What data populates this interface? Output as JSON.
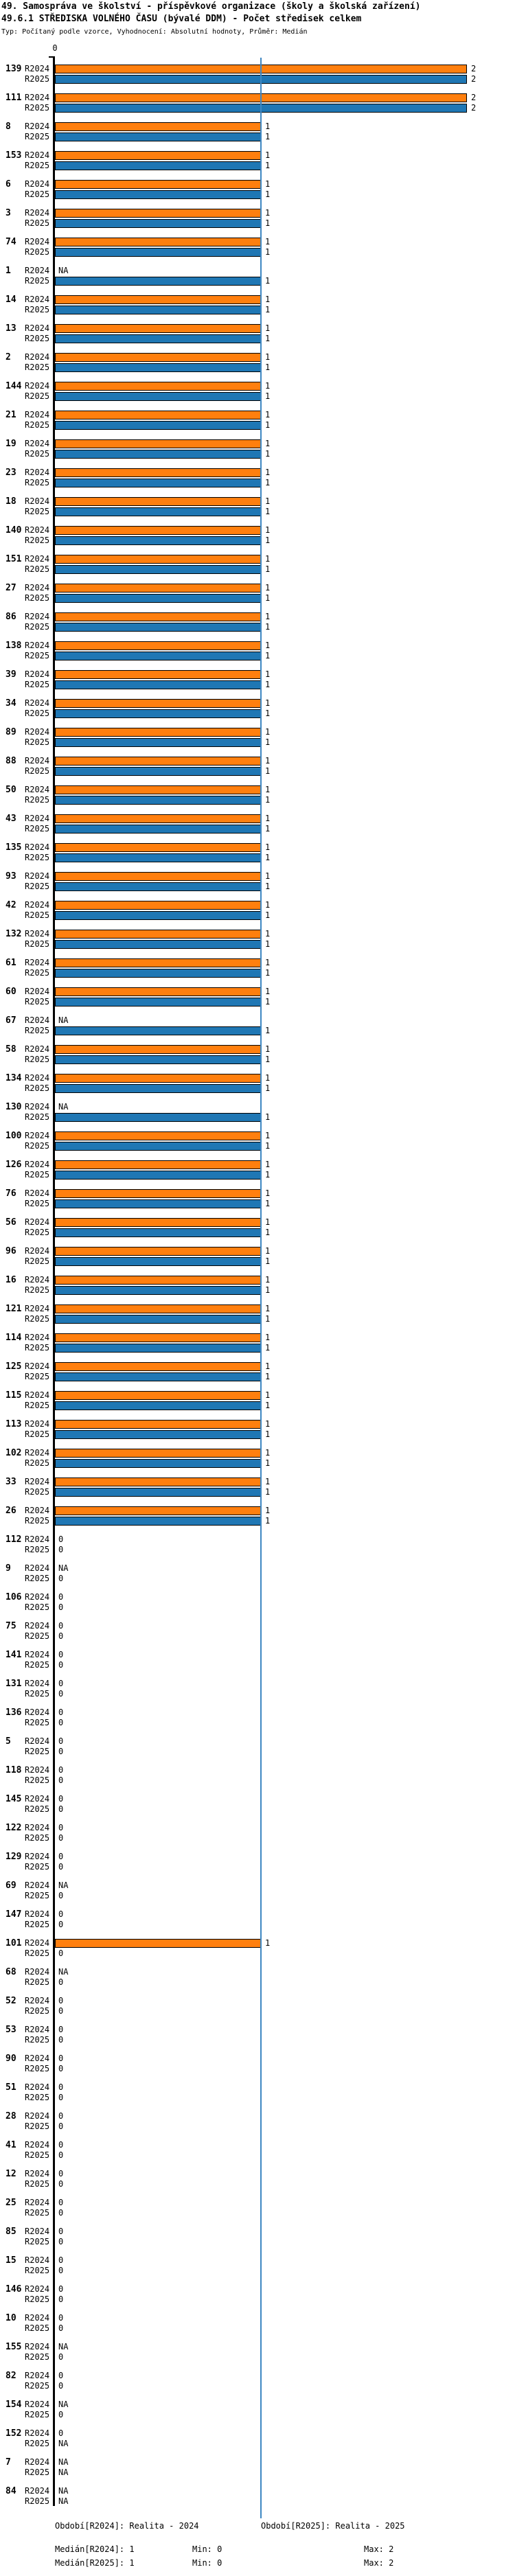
{
  "header": {
    "title_line1": "49. Samospráva ve školství - příspěvkové organizace (školy a školská zařízení)",
    "title_line2": "49.6.1 STŘEDISKA VOLNÉHO ČASU (bývalé DDM) - Počet středisek celkem",
    "subtitle": "Typ: Počítaný podle vzorce, Vyhodnocení: Absolutní hodnoty, Průměr: Medián"
  },
  "colors": {
    "r2024_bar": "#FF7F0E",
    "r2025_bar": "#1F77B4",
    "median_line": "#3E87C2",
    "axis": "#000000"
  },
  "footer": {
    "period_r2024": "Období[R2024]: Realita - 2024",
    "period_r2025": "Období[R2025]: Realita - 2025",
    "median_r2024": "Medián[R2024]: 1",
    "min_r2024": "Min: 0",
    "max_r2024": "Max: 2",
    "median_r2025": "Medián[R2025]: 1",
    "min_r2025": "Min: 0",
    "max_r2025": "Max: 2"
  },
  "chart_data": {
    "type": "bar",
    "orientation": "horizontal",
    "title": "49.6.1 STŘEDISKA VOLNÉHO ČASU (bývalé DDM) - Počet středisek celkem",
    "series": [
      "R2024",
      "R2025"
    ],
    "x_axis": {
      "min": 0,
      "max": 2,
      "zero_label": "0",
      "grid": false
    },
    "median": {
      "R2024": 1,
      "R2025": 1
    },
    "min": {
      "R2024": 0,
      "R2025": 0
    },
    "max": {
      "R2024": 2,
      "R2025": 2
    },
    "na_label": "NA",
    "groups": [
      {
        "label": "139",
        "R2024": "2",
        "R2025": "2"
      },
      {
        "label": "111",
        "R2024": "2",
        "R2025": "2"
      },
      {
        "label": "8",
        "R2024": "1",
        "R2025": "1"
      },
      {
        "label": "153",
        "R2024": "1",
        "R2025": "1"
      },
      {
        "label": "6",
        "R2024": "1",
        "R2025": "1"
      },
      {
        "label": "3",
        "R2024": "1",
        "R2025": "1"
      },
      {
        "label": "74",
        "R2024": "1",
        "R2025": "1"
      },
      {
        "label": "1",
        "R2024": "NA",
        "R2025": "1"
      },
      {
        "label": "14",
        "R2024": "1",
        "R2025": "1"
      },
      {
        "label": "13",
        "R2024": "1",
        "R2025": "1"
      },
      {
        "label": "2",
        "R2024": "1",
        "R2025": "1"
      },
      {
        "label": "144",
        "R2024": "1",
        "R2025": "1"
      },
      {
        "label": "21",
        "R2024": "1",
        "R2025": "1"
      },
      {
        "label": "19",
        "R2024": "1",
        "R2025": "1"
      },
      {
        "label": "23",
        "R2024": "1",
        "R2025": "1"
      },
      {
        "label": "18",
        "R2024": "1",
        "R2025": "1"
      },
      {
        "label": "140",
        "R2024": "1",
        "R2025": "1"
      },
      {
        "label": "151",
        "R2024": "1",
        "R2025": "1"
      },
      {
        "label": "27",
        "R2024": "1",
        "R2025": "1"
      },
      {
        "label": "86",
        "R2024": "1",
        "R2025": "1"
      },
      {
        "label": "138",
        "R2024": "1",
        "R2025": "1"
      },
      {
        "label": "39",
        "R2024": "1",
        "R2025": "1"
      },
      {
        "label": "34",
        "R2024": "1",
        "R2025": "1"
      },
      {
        "label": "89",
        "R2024": "1",
        "R2025": "1"
      },
      {
        "label": "88",
        "R2024": "1",
        "R2025": "1"
      },
      {
        "label": "50",
        "R2024": "1",
        "R2025": "1"
      },
      {
        "label": "43",
        "R2024": "1",
        "R2025": "1"
      },
      {
        "label": "135",
        "R2024": "1",
        "R2025": "1"
      },
      {
        "label": "93",
        "R2024": "1",
        "R2025": "1"
      },
      {
        "label": "42",
        "R2024": "1",
        "R2025": "1"
      },
      {
        "label": "132",
        "R2024": "1",
        "R2025": "1"
      },
      {
        "label": "61",
        "R2024": "1",
        "R2025": "1"
      },
      {
        "label": "60",
        "R2024": "1",
        "R2025": "1"
      },
      {
        "label": "67",
        "R2024": "NA",
        "R2025": "1"
      },
      {
        "label": "58",
        "R2024": "1",
        "R2025": "1"
      },
      {
        "label": "134",
        "R2024": "1",
        "R2025": "1"
      },
      {
        "label": "130",
        "R2024": "NA",
        "R2025": "1"
      },
      {
        "label": "100",
        "R2024": "1",
        "R2025": "1"
      },
      {
        "label": "126",
        "R2024": "1",
        "R2025": "1"
      },
      {
        "label": "76",
        "R2024": "1",
        "R2025": "1"
      },
      {
        "label": "56",
        "R2024": "1",
        "R2025": "1"
      },
      {
        "label": "96",
        "R2024": "1",
        "R2025": "1"
      },
      {
        "label": "16",
        "R2024": "1",
        "R2025": "1"
      },
      {
        "label": "121",
        "R2024": "1",
        "R2025": "1"
      },
      {
        "label": "114",
        "R2024": "1",
        "R2025": "1"
      },
      {
        "label": "125",
        "R2024": "1",
        "R2025": "1"
      },
      {
        "label": "115",
        "R2024": "1",
        "R2025": "1"
      },
      {
        "label": "113",
        "R2024": "1",
        "R2025": "1"
      },
      {
        "label": "102",
        "R2024": "1",
        "R2025": "1"
      },
      {
        "label": "33",
        "R2024": "1",
        "R2025": "1"
      },
      {
        "label": "26",
        "R2024": "1",
        "R2025": "1"
      },
      {
        "label": "112",
        "R2024": "0",
        "R2025": "0"
      },
      {
        "label": "9",
        "R2024": "NA",
        "R2025": "0"
      },
      {
        "label": "106",
        "R2024": "0",
        "R2025": "0"
      },
      {
        "label": "75",
        "R2024": "0",
        "R2025": "0"
      },
      {
        "label": "141",
        "R2024": "0",
        "R2025": "0"
      },
      {
        "label": "131",
        "R2024": "0",
        "R2025": "0"
      },
      {
        "label": "136",
        "R2024": "0",
        "R2025": "0"
      },
      {
        "label": "5",
        "R2024": "0",
        "R2025": "0"
      },
      {
        "label": "118",
        "R2024": "0",
        "R2025": "0"
      },
      {
        "label": "145",
        "R2024": "0",
        "R2025": "0"
      },
      {
        "label": "122",
        "R2024": "0",
        "R2025": "0"
      },
      {
        "label": "129",
        "R2024": "0",
        "R2025": "0"
      },
      {
        "label": "69",
        "R2024": "NA",
        "R2025": "0"
      },
      {
        "label": "147",
        "R2024": "0",
        "R2025": "0"
      },
      {
        "label": "101",
        "R2024": "1",
        "R2025": "0"
      },
      {
        "label": "68",
        "R2024": "NA",
        "R2025": "0"
      },
      {
        "label": "52",
        "R2024": "0",
        "R2025": "0"
      },
      {
        "label": "53",
        "R2024": "0",
        "R2025": "0"
      },
      {
        "label": "90",
        "R2024": "0",
        "R2025": "0"
      },
      {
        "label": "51",
        "R2024": "0",
        "R2025": "0"
      },
      {
        "label": "28",
        "R2024": "0",
        "R2025": "0"
      },
      {
        "label": "41",
        "R2024": "0",
        "R2025": "0"
      },
      {
        "label": "12",
        "R2024": "0",
        "R2025": "0"
      },
      {
        "label": "25",
        "R2024": "0",
        "R2025": "0"
      },
      {
        "label": "85",
        "R2024": "0",
        "R2025": "0"
      },
      {
        "label": "15",
        "R2024": "0",
        "R2025": "0"
      },
      {
        "label": "146",
        "R2024": "0",
        "R2025": "0"
      },
      {
        "label": "10",
        "R2024": "0",
        "R2025": "0"
      },
      {
        "label": "155",
        "R2024": "NA",
        "R2025": "0"
      },
      {
        "label": "82",
        "R2024": "0",
        "R2025": "0"
      },
      {
        "label": "154",
        "R2024": "NA",
        "R2025": "0"
      },
      {
        "label": "152",
        "R2024": "0",
        "R2025": "NA"
      },
      {
        "label": "7",
        "R2024": "NA",
        "R2025": "NA"
      },
      {
        "label": "84",
        "R2024": "NA",
        "R2025": "NA"
      }
    ]
  }
}
